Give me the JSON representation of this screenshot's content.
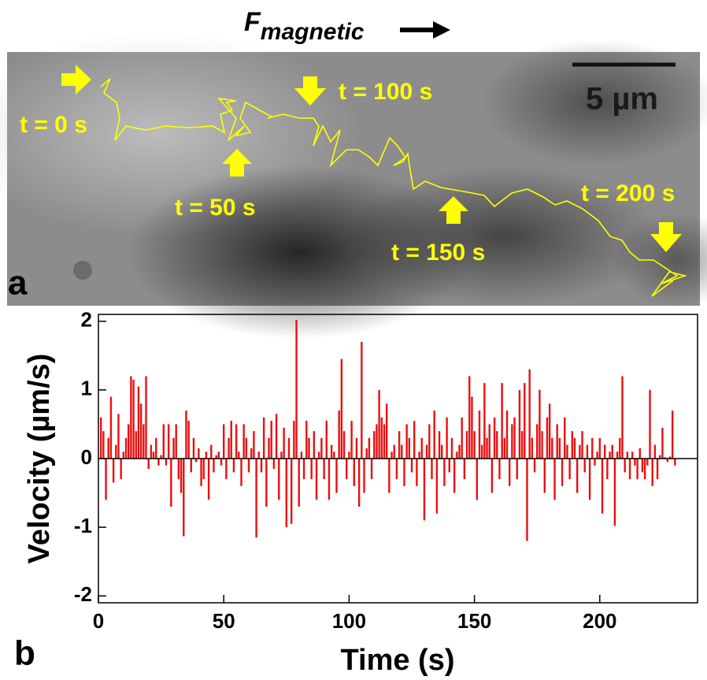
{
  "panel_a": {
    "force_symbol": "F",
    "force_subscript": "magnetic",
    "scale_bar": "5 µm",
    "panel_label": "a",
    "labels": [
      "t = 0 s",
      "t = 50 s",
      "t = 100 s",
      "t = 150 s",
      "t = 200 s"
    ]
  },
  "chart_data": {
    "type": "bar",
    "panel_label": "b",
    "x_label": "Time (s)",
    "y_label": "Velocity (µm/s)",
    "color": "#e81010",
    "xlim": [
      0,
      239
    ],
    "ylim": [
      -2.1,
      2.1
    ],
    "xticks": [
      0,
      50,
      100,
      150,
      200
    ],
    "yticks": [
      -2,
      -1,
      0,
      1,
      2
    ],
    "x": [
      1,
      2,
      3,
      4,
      5,
      6,
      7,
      8,
      9,
      10,
      11,
      12,
      13,
      14,
      15,
      16,
      17,
      18,
      19,
      20,
      21,
      22,
      23,
      24,
      25,
      26,
      27,
      28,
      29,
      30,
      31,
      32,
      33,
      34,
      35,
      36,
      37,
      38,
      39,
      40,
      41,
      42,
      43,
      44,
      45,
      46,
      47,
      48,
      49,
      50,
      51,
      52,
      53,
      54,
      55,
      56,
      57,
      58,
      59,
      60,
      61,
      62,
      63,
      64,
      65,
      66,
      67,
      68,
      69,
      70,
      71,
      72,
      73,
      74,
      75,
      76,
      77,
      78,
      79,
      80,
      81,
      82,
      83,
      84,
      85,
      86,
      87,
      88,
      89,
      90,
      91,
      92,
      93,
      94,
      95,
      96,
      97,
      98,
      99,
      100,
      101,
      102,
      103,
      104,
      105,
      106,
      107,
      108,
      109,
      110,
      111,
      112,
      113,
      114,
      115,
      116,
      117,
      118,
      119,
      120,
      121,
      122,
      123,
      124,
      125,
      126,
      127,
      128,
      129,
      130,
      131,
      132,
      133,
      134,
      135,
      136,
      137,
      138,
      139,
      140,
      141,
      142,
      143,
      144,
      145,
      146,
      147,
      148,
      149,
      150,
      151,
      152,
      153,
      154,
      155,
      156,
      157,
      158,
      159,
      160,
      161,
      162,
      163,
      164,
      165,
      166,
      167,
      168,
      169,
      170,
      171,
      172,
      173,
      174,
      175,
      176,
      177,
      178,
      179,
      180,
      181,
      182,
      183,
      184,
      185,
      186,
      187,
      188,
      189,
      190,
      191,
      192,
      193,
      194,
      195,
      196,
      197,
      198,
      199,
      200,
      201,
      202,
      203,
      204,
      205,
      206,
      207,
      208,
      209,
      210,
      211,
      212,
      213,
      214,
      215,
      216,
      217,
      218,
      219,
      220,
      221,
      222,
      223,
      224,
      225,
      226,
      227,
      228,
      229,
      230
    ],
    "values": [
      0.6,
      0.4,
      -0.6,
      0.3,
      0.9,
      -0.35,
      0.2,
      0.65,
      -0.3,
      0.1,
      0.3,
      0.5,
      1.2,
      1.15,
      0.4,
      1.05,
      0.8,
      0.5,
      1.2,
      -0.15,
      0.2,
      0.1,
      0.3,
      -0.1,
      0.05,
      0.5,
      -0.1,
      0.5,
      -0.7,
      0.3,
      0.5,
      -0.3,
      -0.5,
      -1.13,
      0.7,
      0.55,
      -0.2,
      0.3,
      -0.05,
      0.15,
      -0.4,
      -0.3,
      0.1,
      -0.6,
      0.2,
      -0.2,
      0.05,
      0.1,
      -0.1,
      0.5,
      -0.3,
      0.3,
      0.55,
      -0.2,
      0.5,
      0.1,
      -0.4,
      0.5,
      0.3,
      -0.2,
      0.15,
      0.4,
      -1.15,
      0.1,
      -0.2,
      0.6,
      -0.7,
      0.3,
      0.55,
      -0.15,
      0.65,
      -0.6,
      0.1,
      0.45,
      -1.0,
      0.3,
      -0.95,
      0.55,
      2.02,
      -0.7,
      0.1,
      -0.3,
      0.55,
      0.3,
      -0.3,
      0.4,
      -0.6,
      0.1,
      0.3,
      -0.3,
      0.55,
      -0.6,
      0.2,
      0.1,
      -0.5,
      0.7,
      1.45,
      0.4,
      -0.3,
      0.1,
      0.55,
      -0.4,
      0.3,
      -0.7,
      1.7,
      -0.5,
      0.15,
      0.3,
      -0.3,
      0.4,
      0.5,
      1.0,
      0.6,
      0.5,
      0.8,
      -0.5,
      0.1,
      0.2,
      -0.3,
      0.4,
      0.2,
      -0.4,
      0.5,
      0.3,
      -0.2,
      0.55,
      -0.4,
      0.1,
      0.3,
      -0.9,
      0.2,
      0.5,
      -0.3,
      0.7,
      -0.8,
      0.4,
      0.2,
      -0.4,
      0.6,
      -0.2,
      0.3,
      -0.5,
      0.1,
      0.2,
      0.6,
      -0.3,
      0.4,
      1.2,
      0.9,
      0.4,
      -0.6,
      0.7,
      0.2,
      1.1,
      0.3,
      0.5,
      -0.5,
      0.6,
      0.4,
      -0.3,
      1.1,
      0.3,
      0.7,
      -0.4,
      0.5,
      0.6,
      -0.3,
      1.0,
      0.4,
      1.1,
      -1.2,
      1.3,
      0.3,
      -0.2,
      0.5,
      1.0,
      0.4,
      -0.5,
      0.6,
      0.8,
      0.3,
      -0.6,
      0.5,
      0.3,
      -0.4,
      0.6,
      0.2,
      -0.3,
      0.4,
      0.3,
      -0.5,
      0.2,
      0.4,
      -0.2,
      0.2,
      -0.6,
      0.3,
      -0.1,
      0.1,
      0.3,
      -0.8,
      0.2,
      -0.3,
      0.1,
      0.2,
      -0.98,
      0.1,
      0.3,
      1.2,
      -0.2,
      0.1,
      -0.3,
      0.1,
      -0.1,
      -0.3,
      0.15,
      -0.2,
      -0.3,
      -0.1,
      1.0,
      -0.4,
      0.2,
      -0.3,
      0.05,
      0.45,
      0.02,
      -0.05,
      0.03,
      0.7,
      -0.1
    ]
  }
}
